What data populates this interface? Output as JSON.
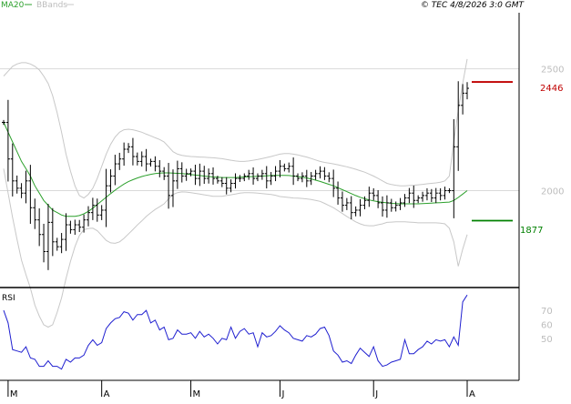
{
  "header": {
    "legend_ma": "MA20",
    "legend_bbands": "BBands",
    "copyright": "© TEC 4/8/2026 3:0 GMT"
  },
  "colors": {
    "ma": "#2ca02c",
    "bands": "#c8c8c8",
    "bars": "#000000",
    "rsi": "#1f1fd0",
    "resistance": "#c00000",
    "support": "#008000",
    "axis": "#000000",
    "grid": "#d9d9d9"
  },
  "levels": {
    "resistance": {
      "value": 2446,
      "label": "2446"
    },
    "support": {
      "value": 1877,
      "label": "1877"
    }
  },
  "rsi_panel": {
    "label": "RSI"
  },
  "chart_data": [
    {
      "type": "ohlc",
      "y_ticks": [
        2000,
        2500
      ],
      "y_tick_labels": [
        "2000",
        "2500"
      ],
      "ylim": [
        1610,
        2730
      ],
      "grid": true,
      "x_labels": [
        "M",
        "A",
        "M",
        "J",
        "J",
        "A"
      ],
      "x_label_index": [
        1,
        22,
        42,
        62,
        83,
        104
      ],
      "n": 105,
      "close": [
        2280,
        2130,
        2040,
        2010,
        1990,
        2040,
        1930,
        1880,
        1820,
        1750,
        1870,
        1790,
        1770,
        1800,
        1860,
        1840,
        1860,
        1850,
        1880,
        1910,
        1940,
        1900,
        1920,
        2020,
        2060,
        2110,
        2130,
        2170,
        2180,
        2140,
        2120,
        2140,
        2110,
        2120,
        2100,
        2080,
        2060,
        1980,
        2040,
        2090,
        2060,
        2070,
        2080,
        2050,
        2080,
        2050,
        2070,
        2050,
        2040,
        2030,
        2010,
        2030,
        2050,
        2050,
        2060,
        2070,
        2050,
        2060,
        2070,
        2040,
        2060,
        2080,
        2100,
        2090,
        2100,
        2060,
        2050,
        2060,
        2040,
        2060,
        2070,
        2080,
        2060,
        2050,
        2010,
        1970,
        1940,
        1950,
        1910,
        1920,
        1940,
        1960,
        1990,
        1980,
        1950,
        1920,
        1950,
        1930,
        1940,
        1950,
        1970,
        1990,
        1960,
        1970,
        1980,
        1990,
        1970,
        1990,
        1980,
        2000,
        2000,
        2180,
        2350,
        2400,
        2420
      ],
      "ma20": [
        2280,
        2240,
        2200,
        2160,
        2120,
        2090,
        2060,
        2020,
        1990,
        1960,
        1940,
        1920,
        1910,
        1900,
        1895,
        1895,
        1895,
        1898,
        1905,
        1915,
        1928,
        1943,
        1958,
        1973,
        1988,
        2002,
        2015,
        2027,
        2037,
        2045,
        2052,
        2058,
        2063,
        2067,
        2070,
        2072,
        2073,
        2073,
        2072,
        2071,
        2070,
        2068,
        2066,
        2064,
        2062,
        2060,
        2058,
        2056,
        2055,
        2054,
        2054,
        2054,
        2054,
        2055,
        2056,
        2057,
        2058,
        2059,
        2060,
        2061,
        2062,
        2063,
        2063,
        2063,
        2062,
        2060,
        2058,
        2055,
        2052,
        2048,
        2043,
        2038,
        2032,
        2026,
        2020,
        2012,
        2004,
        1996,
        1988,
        1980,
        1973,
        1967,
        1962,
        1958,
        1955,
        1952,
        1950,
        1948,
        1947,
        1946,
        1946,
        1946,
        1946,
        1946,
        1947,
        1948,
        1949,
        1950,
        1951,
        1952,
        1953,
        1960,
        1972,
        1986,
        2000
      ],
      "bb_upper": [
        2470,
        2490,
        2510,
        2520,
        2525,
        2525,
        2520,
        2510,
        2495,
        2470,
        2440,
        2390,
        2320,
        2240,
        2150,
        2080,
        2020,
        1980,
        1970,
        1985,
        2010,
        2050,
        2100,
        2150,
        2190,
        2220,
        2240,
        2250,
        2252,
        2250,
        2245,
        2240,
        2232,
        2225,
        2217,
        2210,
        2200,
        2180,
        2160,
        2150,
        2145,
        2142,
        2140,
        2139,
        2138,
        2137,
        2136,
        2135,
        2133,
        2131,
        2128,
        2125,
        2122,
        2120,
        2120,
        2122,
        2125,
        2128,
        2132,
        2136,
        2140,
        2145,
        2150,
        2152,
        2152,
        2150,
        2147,
        2142,
        2138,
        2132,
        2126,
        2120,
        2116,
        2113,
        2110,
        2106,
        2102,
        2098,
        2093,
        2088,
        2082,
        2076,
        2068,
        2060,
        2050,
        2040,
        2030,
        2025,
        2022,
        2020,
        2020,
        2021,
        2022,
        2024,
        2026,
        2028,
        2030,
        2032,
        2035,
        2040,
        2060,
        2200,
        2330,
        2440,
        2540
      ],
      "bb_lower": [
        2090,
        1990,
        1890,
        1800,
        1715,
        1655,
        1600,
        1530,
        1485,
        1450,
        1440,
        1450,
        1500,
        1560,
        1640,
        1710,
        1770,
        1816,
        1840,
        1845,
        1846,
        1836,
        1816,
        1796,
        1786,
        1784,
        1790,
        1804,
        1822,
        1840,
        1859,
        1876,
        1894,
        1909,
        1923,
        1934,
        1946,
        1966,
        1984,
        1992,
        1995,
        1994,
        1992,
        1989,
        1986,
        1983,
        1980,
        1977,
        1977,
        1977,
        1980,
        1983,
        1986,
        1990,
        1992,
        1992,
        1991,
        1990,
        1988,
        1986,
        1984,
        1981,
        1976,
        1974,
        1972,
        1970,
        1969,
        1968,
        1966,
        1964,
        1960,
        1956,
        1948,
        1939,
        1930,
        1918,
        1906,
        1894,
        1883,
        1872,
        1864,
        1858,
        1856,
        1856,
        1860,
        1864,
        1870,
        1871,
        1872,
        1872,
        1872,
        1871,
        1870,
        1868,
        1868,
        1868,
        1868,
        1868,
        1867,
        1864,
        1846,
        1790,
        1690,
        1760,
        1820
      ]
    },
    {
      "type": "line",
      "label": "RSI",
      "y_ticks": [
        50,
        60,
        70
      ],
      "y_tick_labels": [
        "50",
        "60",
        "70"
      ],
      "ylim": [
        20,
        85
      ],
      "values": [
        70,
        61,
        42,
        41,
        40,
        44,
        36,
        35,
        30,
        30,
        34,
        30,
        30,
        28,
        35,
        33,
        36,
        36,
        38,
        45,
        49,
        45,
        47,
        57,
        61,
        64,
        65,
        69,
        68,
        63,
        67,
        67,
        70,
        61,
        63,
        56,
        58,
        49,
        50,
        56,
        53,
        53,
        54,
        50,
        55,
        51,
        53,
        50,
        46,
        50,
        49,
        58,
        50,
        55,
        57,
        53,
        54,
        44,
        54,
        51,
        52,
        55,
        59,
        56,
        54,
        50,
        49,
        48,
        52,
        51,
        53,
        57,
        58,
        52,
        41,
        38,
        33,
        34,
        32,
        38,
        43,
        40,
        37,
        44,
        34,
        30,
        31,
        33,
        34,
        35,
        49,
        39,
        39,
        42,
        44,
        48,
        46,
        49,
        48,
        49,
        44,
        51,
        45,
        76,
        81
      ]
    }
  ]
}
